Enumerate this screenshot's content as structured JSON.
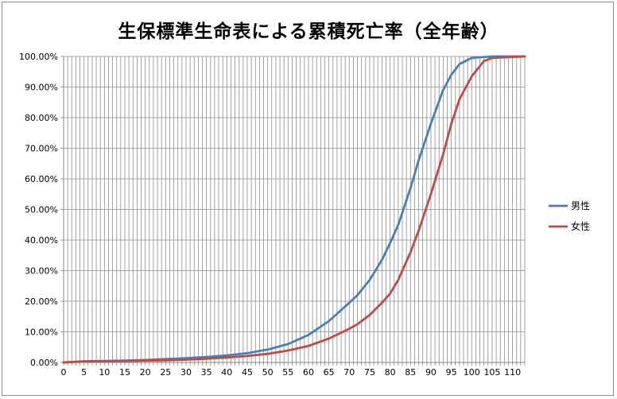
{
  "chart_data": {
    "type": "line",
    "title": "生保標準生命表による累積死亡率（全年齢）",
    "xlabel": "",
    "ylabel": "",
    "xlim": [
      0,
      113
    ],
    "ylim": [
      0,
      100
    ],
    "x_ticks": [
      "0",
      "5",
      "10",
      "15",
      "20",
      "25",
      "30",
      "35",
      "40",
      "45",
      "50",
      "55",
      "60",
      "65",
      "70",
      "75",
      "80",
      "85",
      "90",
      "95",
      "100",
      "105",
      "110"
    ],
    "y_ticks": [
      "0.00%",
      "10.00%",
      "20.00%",
      "30.00%",
      "40.00%",
      "50.00%",
      "60.00%",
      "70.00%",
      "80.00%",
      "90.00%",
      "100.00%"
    ],
    "grid": "vertical every year, horizontal every 10%",
    "legend": "right",
    "series": [
      {
        "name": "男性",
        "color": "#4a7ebb",
        "x": [
          0,
          5,
          10,
          15,
          20,
          25,
          30,
          35,
          40,
          45,
          50,
          55,
          60,
          65,
          70,
          72,
          75,
          78,
          80,
          82,
          85,
          87,
          90,
          93,
          95,
          97,
          100,
          105,
          113
        ],
        "y": [
          0,
          0.4,
          0.5,
          0.6,
          0.8,
          1.1,
          1.4,
          1.8,
          2.3,
          3.0,
          4.2,
          6.0,
          9.0,
          13.5,
          19.5,
          22.0,
          27.0,
          33.5,
          39.0,
          45.0,
          57.0,
          66.0,
          78.0,
          89.0,
          94.0,
          97.5,
          99.5,
          100,
          100
        ]
      },
      {
        "name": "女性",
        "color": "#be4b48",
        "x": [
          0,
          5,
          10,
          15,
          20,
          25,
          30,
          35,
          40,
          45,
          50,
          55,
          60,
          65,
          70,
          72,
          75,
          78,
          80,
          82,
          85,
          87,
          90,
          93,
          95,
          97,
          100,
          103,
          105,
          113
        ],
        "y": [
          0,
          0.3,
          0.4,
          0.5,
          0.6,
          0.7,
          0.9,
          1.2,
          1.6,
          2.1,
          2.8,
          3.9,
          5.4,
          7.8,
          11.0,
          12.5,
          15.5,
          19.5,
          22.5,
          27.0,
          36.0,
          43.0,
          55.0,
          68.0,
          78.0,
          86.0,
          93.5,
          98.5,
          99.5,
          100
        ]
      }
    ]
  }
}
